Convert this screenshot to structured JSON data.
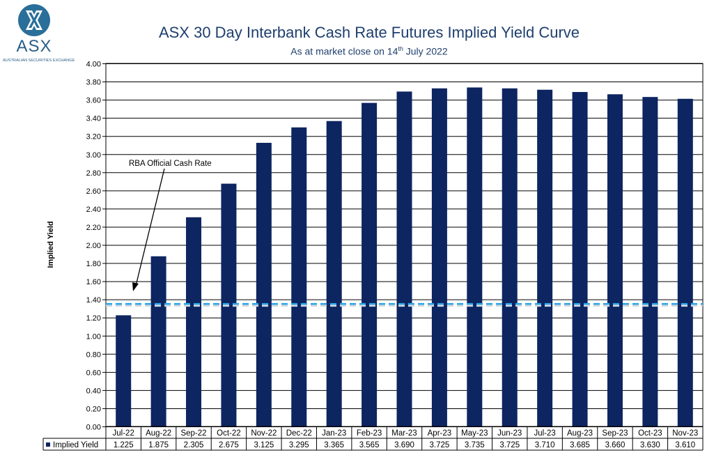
{
  "logo": {
    "name": "ASX",
    "subtext": "AUSTRALIAN SECURITIES EXCHANGE"
  },
  "chart_data": {
    "type": "bar",
    "title": "ASX 30 Day Interbank Cash Rate Futures Implied Yield Curve",
    "subtitle_prefix": "As at market close on 14",
    "subtitle_sup": "th",
    "subtitle_suffix": " July 2022",
    "ylabel": "Implied Yield",
    "xlabel": "",
    "ylim": [
      0,
      4
    ],
    "ytick_step": 0.2,
    "ytick_labels": [
      "0.00",
      "0.20",
      "0.40",
      "0.60",
      "0.80",
      "1.00",
      "1.20",
      "1.40",
      "1.60",
      "1.80",
      "2.00",
      "2.20",
      "2.40",
      "2.60",
      "2.80",
      "3.00",
      "3.20",
      "3.40",
      "3.60",
      "3.80",
      "4.00"
    ],
    "categories": [
      "Jul-22",
      "Aug-22",
      "Sep-22",
      "Oct-22",
      "Nov-22",
      "Dec-22",
      "Jan-23",
      "Feb-23",
      "Mar-23",
      "Apr-23",
      "May-23",
      "Jun-23",
      "Jul-23",
      "Aug-23",
      "Sep-23",
      "Oct-23",
      "Nov-23"
    ],
    "series": [
      {
        "name": "Implied Yield",
        "color": "#0d2560",
        "values": [
          1.225,
          1.875,
          2.305,
          2.675,
          3.125,
          3.295,
          3.365,
          3.565,
          3.69,
          3.725,
          3.735,
          3.725,
          3.71,
          3.685,
          3.66,
          3.63,
          3.61
        ],
        "labels": [
          "1.225",
          "1.875",
          "2.305",
          "2.675",
          "3.125",
          "3.295",
          "3.365",
          "3.565",
          "3.690",
          "3.725",
          "3.735",
          "3.725",
          "3.710",
          "3.685",
          "3.660",
          "3.630",
          "3.610"
        ]
      }
    ],
    "reference_line": {
      "name": "RBA Official Cash Rate",
      "value": 1.35,
      "color": "#29a3e8"
    },
    "annotation": {
      "text": "RBA Official Cash Rate"
    },
    "grid": true,
    "data_table": true
  }
}
